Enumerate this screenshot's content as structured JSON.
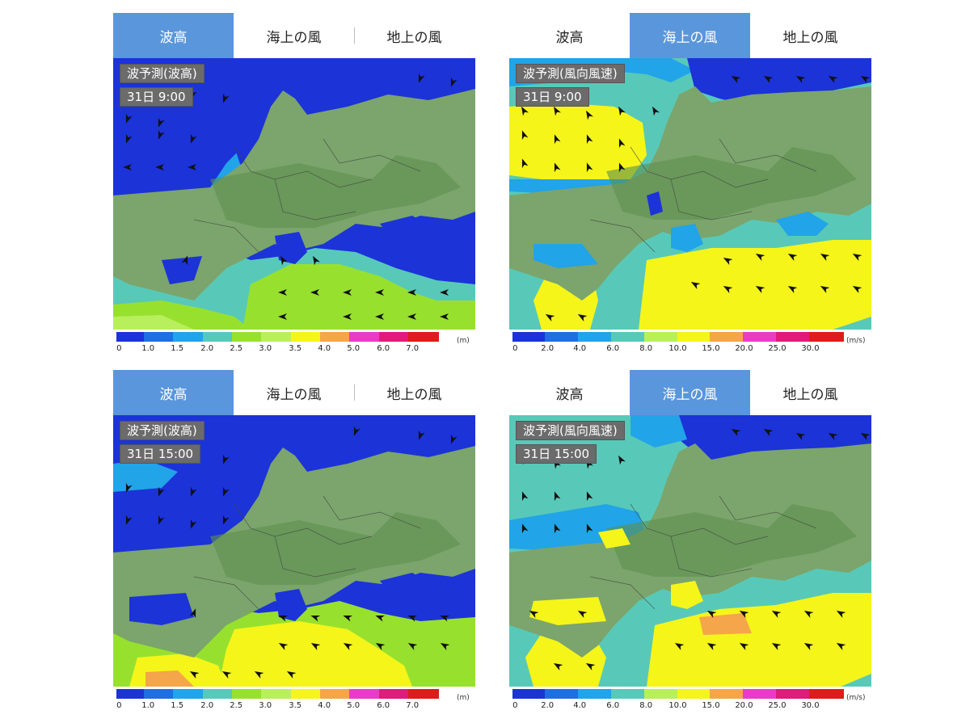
{
  "colors": {
    "tab_active": "#5a96dc",
    "legend_wave": [
      "#1c33d8",
      "#1f6fe0",
      "#21a4e8",
      "#58c9b8",
      "#97e12e",
      "#b8ef5c",
      "#f5f51a",
      "#f5a54a",
      "#e83cc8",
      "#e01b7a",
      "#e01b1b"
    ],
    "legend_wind": [
      "#1c33d8",
      "#1f6fe0",
      "#21a4e8",
      "#58c9b8",
      "#b8ef5c",
      "#f5f51a",
      "#f5a54a",
      "#e83cc8",
      "#e01b7a",
      "#e01b1b"
    ]
  },
  "panels": [
    {
      "tabs": [
        {
          "label": "波高",
          "active": true
        },
        {
          "label": "海上の風",
          "active": false
        },
        {
          "label": "地上の風",
          "active": false
        }
      ],
      "title": "波予測(波高)",
      "time": "31日  9:00",
      "legend": {
        "ticks": [
          "0",
          "1.0",
          "1.5",
          "2.0",
          "2.5",
          "3.0",
          "3.5",
          "4.0",
          "5.0",
          "6.0",
          "7.0"
        ],
        "unit": "(m)"
      }
    },
    {
      "tabs": [
        {
          "label": "波高",
          "active": false
        },
        {
          "label": "海上の風",
          "active": true
        },
        {
          "label": "地上の風",
          "active": false
        }
      ],
      "title": "波予測(風向風速)",
      "time": "31日  9:00",
      "legend": {
        "ticks": [
          "0",
          "2.0",
          "4.0",
          "6.0",
          "8.0",
          "10.0",
          "15.0",
          "20.0",
          "25.0",
          "30.0"
        ],
        "unit": "(m/s)"
      }
    },
    {
      "tabs": [
        {
          "label": "波高",
          "active": true
        },
        {
          "label": "海上の風",
          "active": false
        },
        {
          "label": "地上の風",
          "active": false
        }
      ],
      "title": "波予測(波高)",
      "time": "31日  15:00",
      "legend": {
        "ticks": [
          "0",
          "1.0",
          "1.5",
          "2.0",
          "2.5",
          "3.0",
          "3.5",
          "4.0",
          "5.0",
          "6.0",
          "7.0"
        ],
        "unit": "(m)"
      }
    },
    {
      "tabs": [
        {
          "label": "波高",
          "active": false
        },
        {
          "label": "海上の風",
          "active": true
        },
        {
          "label": "地上の風",
          "active": false
        }
      ],
      "title": "波予測(風向風速)",
      "time": "31日  15:00",
      "legend": {
        "ticks": [
          "0",
          "2.0",
          "4.0",
          "6.0",
          "8.0",
          "10.0",
          "15.0",
          "20.0",
          "25.0",
          "30.0"
        ],
        "unit": "(m/s)"
      }
    }
  ]
}
